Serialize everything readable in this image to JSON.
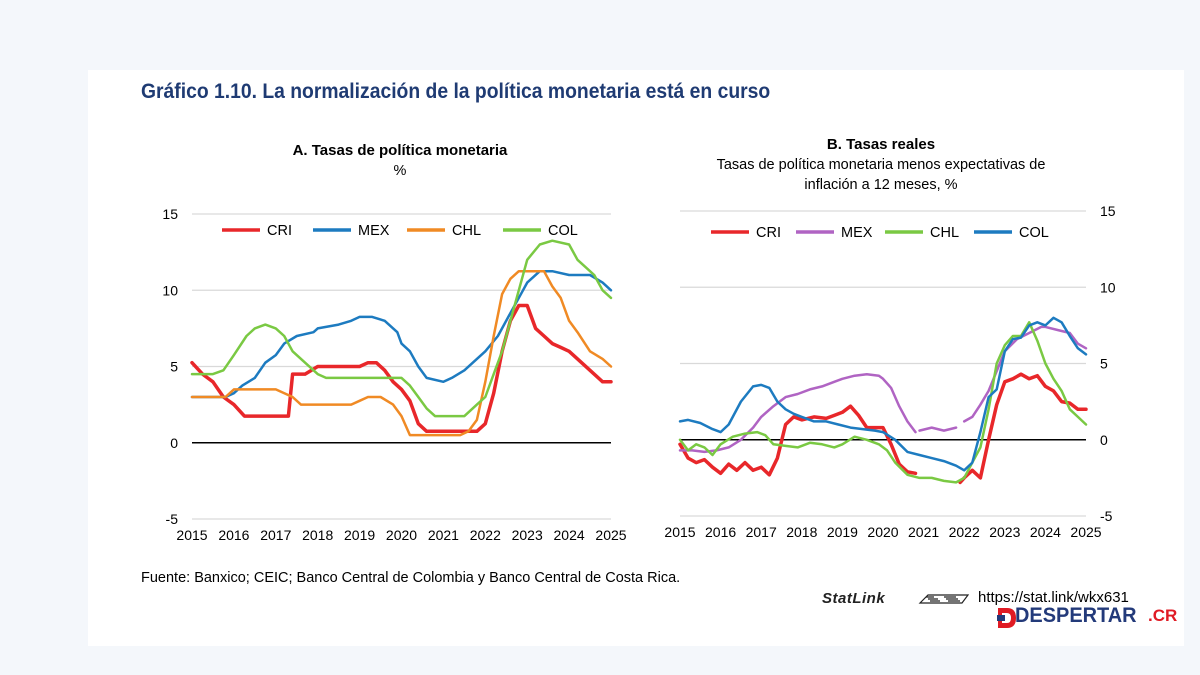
{
  "main_title": "Gráfico 1.10. La normalización de la política monetaria está en curso",
  "source": "Fuente: Banxico; CEIC; Banco Central de Colombia y Banco Central de Costa Rica.",
  "statlink": {
    "label": "StatLink",
    "url": "https://stat.link/wkx631"
  },
  "brand": {
    "main": "DESPERTAR",
    "suffix": ".CR",
    "color_main": "#233a7a",
    "color_suffix": "#e01b24"
  },
  "chart_data": [
    {
      "type": "line",
      "title": "A. Tasas de política monetaria",
      "subtitle": "%",
      "ylim": [
        -5,
        15
      ],
      "yticks": [
        -5,
        0,
        5,
        10,
        15
      ],
      "xlim": [
        2015,
        2025
      ],
      "xticks": [
        "2015",
        "2016",
        "2017",
        "2018",
        "2019",
        "2020",
        "2021",
        "2022",
        "2023",
        "2024",
        "2025"
      ],
      "grid": "horizontal",
      "legend": "top",
      "series": [
        {
          "name": "CRI",
          "color": "#e8272a",
          "width": 3.5,
          "x": [
            2015,
            2015.25,
            2015.5,
            2015.75,
            2016,
            2016.25,
            2016.5,
            2017,
            2017.3,
            2017.4,
            2017.7,
            2018,
            2018.5,
            2019,
            2019.2,
            2019.4,
            2019.6,
            2019.8,
            2020,
            2020.2,
            2020.4,
            2020.6,
            2021,
            2021.5,
            2021.8,
            2022,
            2022.2,
            2022.4,
            2022.6,
            2022.8,
            2023,
            2023.2,
            2023.4,
            2023.6,
            2023.8,
            2024,
            2024.2,
            2024.5,
            2024.8,
            2025
          ],
          "y": [
            5.25,
            4.5,
            4,
            3,
            2.5,
            1.75,
            1.75,
            1.75,
            1.75,
            4.5,
            4.5,
            5,
            5,
            5,
            5.25,
            5.25,
            4.75,
            4,
            3.5,
            2.75,
            1.25,
            0.75,
            0.75,
            0.75,
            0.75,
            1.25,
            3.25,
            6,
            8,
            9,
            9,
            7.5,
            7,
            6.5,
            6.25,
            6,
            5.5,
            4.75,
            4,
            4
          ]
        },
        {
          "name": "MEX",
          "color": "#1d7bc0",
          "width": 2.5,
          "x": [
            2015,
            2015.5,
            2015.8,
            2016,
            2016.2,
            2016.5,
            2016.75,
            2017,
            2017.2,
            2017.5,
            2017.9,
            2018,
            2018.5,
            2018.8,
            2019,
            2019.3,
            2019.6,
            2019.9,
            2020,
            2020.2,
            2020.4,
            2020.6,
            2021,
            2021.2,
            2021.5,
            2021.8,
            2022,
            2022.3,
            2022.6,
            2022.9,
            2023,
            2023.3,
            2023.6,
            2024,
            2024.2,
            2024.5,
            2024.8,
            2025
          ],
          "y": [
            3,
            3,
            3,
            3.25,
            3.75,
            4.25,
            5.25,
            5.75,
            6.5,
            7,
            7.25,
            7.5,
            7.75,
            8,
            8.25,
            8.25,
            8,
            7.25,
            6.5,
            6,
            5,
            4.25,
            4,
            4.25,
            4.75,
            5.5,
            6,
            7,
            8.5,
            10,
            10.5,
            11.25,
            11.25,
            11,
            11,
            11,
            10.5,
            10
          ]
        },
        {
          "name": "CHL",
          "color": "#f08a24",
          "width": 2.5,
          "x": [
            2015,
            2015.8,
            2016,
            2016.5,
            2017,
            2017.4,
            2017.6,
            2018,
            2018.5,
            2018.8,
            2019,
            2019.2,
            2019.5,
            2019.8,
            2020,
            2020.2,
            2020.4,
            2021,
            2021.4,
            2021.6,
            2021.8,
            2022,
            2022.2,
            2022.4,
            2022.6,
            2022.8,
            2023,
            2023.4,
            2023.6,
            2023.8,
            2024,
            2024.2,
            2024.5,
            2024.8,
            2025
          ],
          "y": [
            3,
            3,
            3.5,
            3.5,
            3.5,
            3,
            2.5,
            2.5,
            2.5,
            2.5,
            2.75,
            3,
            3,
            2.5,
            1.75,
            0.5,
            0.5,
            0.5,
            0.5,
            0.75,
            1.5,
            4,
            7,
            9.75,
            10.75,
            11.25,
            11.25,
            11.25,
            10.25,
            9.5,
            8,
            7.25,
            6,
            5.5,
            5
          ]
        },
        {
          "name": "COL",
          "color": "#7ac943",
          "width": 2.5,
          "x": [
            2015,
            2015.5,
            2015.75,
            2016,
            2016.3,
            2016.5,
            2016.75,
            2017,
            2017.2,
            2017.4,
            2017.7,
            2018,
            2018.2,
            2018.5,
            2019,
            2019.5,
            2020,
            2020.2,
            2020.4,
            2020.6,
            2020.8,
            2021,
            2021.5,
            2021.8,
            2022,
            2022.2,
            2022.4,
            2022.6,
            2022.8,
            2023,
            2023.3,
            2023.6,
            2024,
            2024.2,
            2024.4,
            2024.6,
            2024.8,
            2025
          ],
          "y": [
            4.5,
            4.5,
            4.75,
            5.75,
            7,
            7.5,
            7.75,
            7.5,
            7,
            6,
            5.25,
            4.5,
            4.25,
            4.25,
            4.25,
            4.25,
            4.25,
            3.75,
            3,
            2.25,
            1.75,
            1.75,
            1.75,
            2.5,
            3,
            4.5,
            6,
            8,
            10,
            12,
            13,
            13.25,
            13,
            12,
            11.5,
            11,
            10,
            9.5
          ]
        }
      ]
    },
    {
      "type": "line",
      "title": "B. Tasas reales",
      "subtitle": "Tasas de política monetaria menos expectativas de inflación a 12 meses, %",
      "subtitle_line1": "Tasas de política monetaria menos expectativas de",
      "subtitle_line2": "inflación a 12 meses, %",
      "ylim": [
        -5,
        15
      ],
      "yticks": [
        -5,
        0,
        5,
        10,
        15
      ],
      "xlim": [
        2015,
        2025
      ],
      "xticks": [
        "2015",
        "2016",
        "2017",
        "2018",
        "2019",
        "2020",
        "2021",
        "2022",
        "2023",
        "2024",
        "2025"
      ],
      "grid": "horizontal",
      "legend": "top",
      "y_axis_side": "right",
      "series": [
        {
          "name": "CRI",
          "color": "#e8272a",
          "width": 3.5,
          "x": [
            2015,
            2015.2,
            2015.4,
            2015.6,
            2015.8,
            2016,
            2016.2,
            2016.4,
            2016.6,
            2016.8,
            2017,
            2017.2,
            2017.4,
            2017.6,
            2017.8,
            2018,
            2018.3,
            2018.6,
            2018.8,
            2019,
            2019.2,
            2019.4,
            2019.6,
            2019.8,
            2020,
            2020.2,
            2020.4,
            2020.6,
            2020.8,
            null,
            2021.9,
            2022,
            2022.2,
            2022.4,
            2022.6,
            2022.8,
            2023,
            2023.2,
            2023.4,
            2023.6,
            2023.8,
            2024,
            2024.2,
            2024.4,
            2024.6,
            2024.8,
            2025
          ],
          "y": [
            -0.3,
            -1.2,
            -1.5,
            -1.3,
            -1.8,
            -2.2,
            -1.6,
            -2,
            -1.5,
            -2,
            -1.8,
            -2.3,
            -1.2,
            1,
            1.5,
            1.3,
            1.5,
            1.4,
            1.6,
            1.8,
            2.2,
            1.6,
            0.8,
            0.8,
            0.8,
            -0.3,
            -1.6,
            -2.1,
            -2.2,
            null,
            -2.8,
            -2.5,
            -2,
            -2.5,
            0,
            2.3,
            3.8,
            4,
            4.3,
            4,
            4.2,
            3.5,
            3.2,
            2.5,
            2.4,
            2,
            2
          ]
        },
        {
          "name": "MEX",
          "color": "#b064c3",
          "width": 2.5,
          "x": [
            2015,
            2015.3,
            2015.6,
            2015.9,
            2016.2,
            2016.5,
            2016.8,
            2017,
            2017.3,
            2017.6,
            2017.9,
            2018.2,
            2018.5,
            2018.8,
            2019,
            2019.3,
            2019.6,
            2019.9,
            2020,
            2020.2,
            2020.4,
            2020.6,
            2020.8,
            null,
            2020.9,
            2021.2,
            2021.5,
            2021.8,
            null,
            2022,
            2022.2,
            2022.4,
            2022.6,
            2022.8,
            2023,
            2023.3,
            2023.6,
            2023.9,
            2024,
            2024.3,
            2024.6,
            2024.8,
            2025
          ],
          "y": [
            -0.7,
            -0.7,
            -0.8,
            -0.7,
            -0.5,
            0,
            0.8,
            1.5,
            2.2,
            2.8,
            3,
            3.3,
            3.5,
            3.8,
            4,
            4.2,
            4.3,
            4.2,
            4,
            3.4,
            2.2,
            1.2,
            0.5,
            null,
            0.6,
            0.8,
            0.6,
            0.8,
            null,
            1.2,
            1.5,
            2.3,
            3.2,
            4.5,
            5.8,
            6.6,
            7,
            7.4,
            7.4,
            7.2,
            7,
            6.3,
            6
          ]
        },
        {
          "name": "CHL",
          "color": "#7ac943",
          "width": 2.5,
          "x": [
            2015,
            2015.2,
            2015.4,
            2015.6,
            2015.8,
            2016,
            2016.3,
            2016.6,
            2016.9,
            2017.1,
            2017.3,
            2017.6,
            2017.9,
            2018.2,
            2018.5,
            2018.8,
            2019,
            2019.3,
            2019.6,
            2019.9,
            2020.1,
            2020.3,
            2020.6,
            2020.9,
            2021.2,
            2021.5,
            2021.8,
            2022,
            2022.2,
            2022.4,
            2022.6,
            2022.8,
            2023,
            2023.2,
            2023.4,
            2023.6,
            2023.8,
            2024,
            2024.2,
            2024.4,
            2024.6,
            2024.8,
            2025
          ],
          "y": [
            0,
            -0.7,
            -0.3,
            -0.5,
            -1,
            -0.3,
            0.2,
            0.4,
            0.5,
            0.3,
            -0.3,
            -0.4,
            -0.5,
            -0.2,
            -0.3,
            -0.5,
            -0.3,
            0.2,
            0,
            -0.3,
            -0.7,
            -1.5,
            -2.3,
            -2.5,
            -2.5,
            -2.7,
            -2.8,
            -2.5,
            -1.5,
            -0.5,
            2,
            5,
            6.2,
            6.8,
            6.8,
            7.7,
            6.5,
            5,
            4,
            3.2,
            2,
            1.5,
            1
          ]
        },
        {
          "name": "COL",
          "color": "#1d7bc0",
          "width": 2.5,
          "x": [
            2015,
            2015.2,
            2015.5,
            2015.8,
            2016,
            2016.2,
            2016.5,
            2016.8,
            2017,
            2017.2,
            2017.4,
            2017.6,
            2017.8,
            2018,
            2018.3,
            2018.6,
            2018.9,
            2019.2,
            2019.5,
            2019.8,
            2020,
            2020.3,
            2020.6,
            2020.9,
            2021.2,
            2021.5,
            2021.8,
            2022,
            2022.2,
            2022.4,
            2022.6,
            2022.8,
            2023,
            2023.2,
            2023.4,
            2023.6,
            2023.8,
            2024,
            2024.2,
            2024.4,
            2024.6,
            2024.8,
            2025
          ],
          "y": [
            1.2,
            1.3,
            1.1,
            0.7,
            0.5,
            1,
            2.5,
            3.5,
            3.6,
            3.4,
            2.5,
            2,
            1.7,
            1.5,
            1.2,
            1.2,
            1,
            0.8,
            0.7,
            0.6,
            0.5,
            0,
            -0.8,
            -1,
            -1.2,
            -1.4,
            -1.7,
            -2,
            -1.5,
            0.5,
            2.8,
            3.3,
            5.8,
            6.6,
            6.7,
            7.5,
            7.7,
            7.5,
            8,
            7.7,
            6.8,
            6,
            5.6
          ]
        }
      ]
    }
  ]
}
